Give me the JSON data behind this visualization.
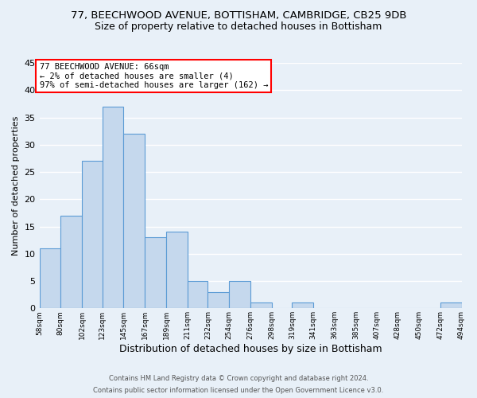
{
  "title_line1": "77, BEECHWOOD AVENUE, BOTTISHAM, CAMBRIDGE, CB25 9DB",
  "title_line2": "Size of property relative to detached houses in Bottisham",
  "xlabel": "Distribution of detached houses by size in Bottisham",
  "ylabel": "Number of detached properties",
  "footer_line1": "Contains HM Land Registry data © Crown copyright and database right 2024.",
  "footer_line2": "Contains public sector information licensed under the Open Government Licence v3.0.",
  "bin_edges": [
    58,
    80,
    102,
    123,
    145,
    167,
    189,
    211,
    232,
    254,
    276,
    298,
    319,
    341,
    363,
    385,
    407,
    428,
    450,
    472,
    494
  ],
  "bin_labels": [
    "58sqm",
    "80sqm",
    "102sqm",
    "123sqm",
    "145sqm",
    "167sqm",
    "189sqm",
    "211sqm",
    "232sqm",
    "254sqm",
    "276sqm",
    "298sqm",
    "319sqm",
    "341sqm",
    "363sqm",
    "385sqm",
    "407sqm",
    "428sqm",
    "450sqm",
    "472sqm",
    "494sqm"
  ],
  "counts": [
    11,
    17,
    27,
    37,
    32,
    13,
    14,
    5,
    3,
    5,
    1,
    0,
    1,
    0,
    0,
    0,
    0,
    0,
    0,
    1
  ],
  "bar_color": "#c5d8ed",
  "bar_edge_color": "#5b9bd5",
  "annotation_text": "77 BEECHWOOD AVENUE: 66sqm\n← 2% of detached houses are smaller (4)\n97% of semi-detached houses are larger (162) →",
  "annotation_box_color": "white",
  "annotation_box_edge_color": "red",
  "ylim": [
    0,
    45
  ],
  "yticks": [
    0,
    5,
    10,
    15,
    20,
    25,
    30,
    35,
    40,
    45
  ],
  "bg_color": "#e8f0f8",
  "plot_bg_color": "#e8f0f8",
  "grid_color": "white",
  "title_fontsize": 9.5,
  "subtitle_fontsize": 9,
  "xlabel_fontsize": 9,
  "ylabel_fontsize": 8,
  "footer_fontsize": 6
}
